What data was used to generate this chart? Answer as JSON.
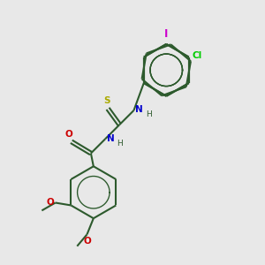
{
  "background_color": "#e8e8e8",
  "bond_color": "#2d5a2d",
  "bond_width": 1.5,
  "atom_colors": {
    "C": "#2d5a2d",
    "N": "#0000cc",
    "O": "#cc0000",
    "S": "#aaaa00",
    "Cl": "#00cc00",
    "I": "#cc00cc",
    "H": "#2d5a2d"
  },
  "font_size": 7.5,
  "fig_size": [
    3.0,
    3.0
  ],
  "dpi": 100
}
